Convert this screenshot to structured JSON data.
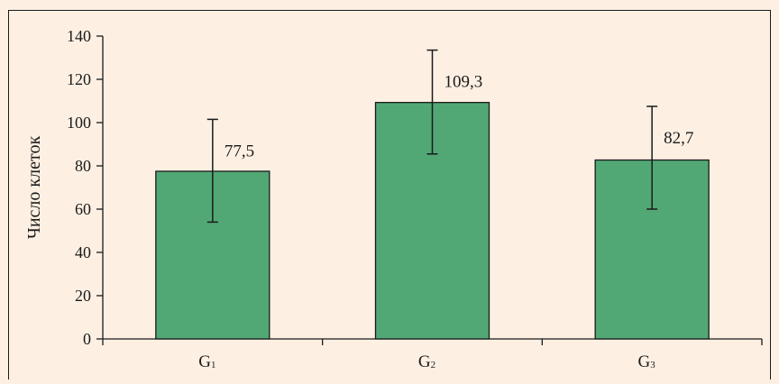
{
  "chart_data": {
    "type": "bar",
    "categories": [
      "G1",
      "G2",
      "G3"
    ],
    "category_labels": [
      {
        "main": "G",
        "sub": "1"
      },
      {
        "main": "G",
        "sub": "2"
      },
      {
        "main": "G",
        "sub": "3"
      }
    ],
    "values": [
      77.5,
      109.3,
      82.7
    ],
    "value_labels": [
      "77,5",
      "109,3",
      "82,7"
    ],
    "error_high": [
      101.5,
      133.5,
      107.5
    ],
    "error_low": [
      54.0,
      85.5,
      60.0
    ],
    "ylabel": "Число клеток",
    "xlabel": "",
    "title": "",
    "ylim": [
      0,
      140
    ],
    "yticks": [
      0,
      20,
      40,
      60,
      80,
      100,
      120,
      140
    ],
    "grid": false,
    "colors": {
      "bar_fill": "#52a875",
      "bar_stroke": "#1a1a1a",
      "background": "#fdf0e3",
      "frame": "#1a1a1a"
    }
  }
}
